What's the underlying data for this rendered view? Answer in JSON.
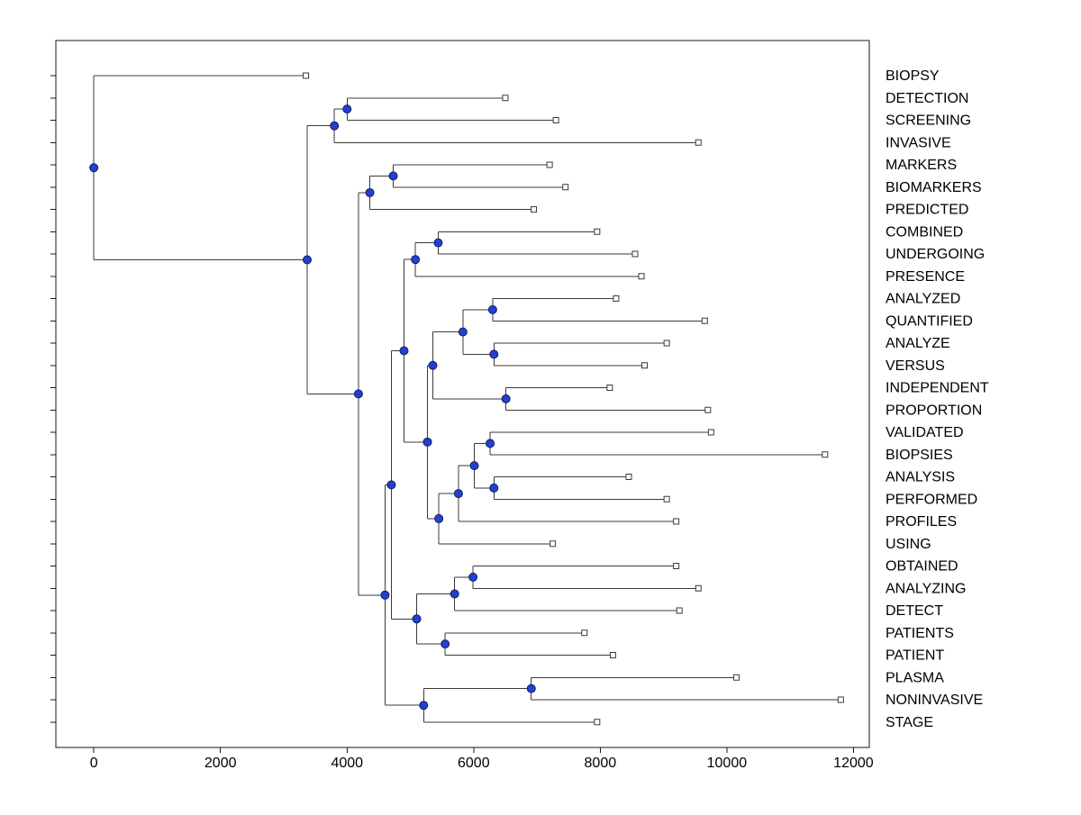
{
  "figure": {
    "background": "#ffffff"
  },
  "chart_data": {
    "type": "dendrogram",
    "title": "",
    "xlabel": "",
    "ylabel": "",
    "orientation": "horizontal-left-to-right",
    "grid": false,
    "xlim": [
      -600,
      12250
    ],
    "x_ticks": [
      0,
      2000,
      4000,
      6000,
      8000,
      10000,
      12000
    ],
    "x_tick_labels": [
      "0",
      "2000",
      "4000",
      "6000",
      "8000",
      "10000",
      "12000"
    ],
    "line_color": "#3a3a3a",
    "box_color": "#1a1a1a",
    "node_marker": {
      "shape": "filled-circle",
      "fill": "#2440cc",
      "stroke": "#101c66"
    },
    "leaf_marker": {
      "shape": "open-square",
      "fill": "#ffffff",
      "stroke": "#3a3a3a"
    },
    "leaves": [
      {
        "label": "BIOPSY",
        "x": 3350
      },
      {
        "label": "DETECTION",
        "x": 6500
      },
      {
        "label": "SCREENING",
        "x": 7300
      },
      {
        "label": "INVASIVE",
        "x": 9550
      },
      {
        "label": "MARKERS",
        "x": 7200
      },
      {
        "label": "BIOMARKERS",
        "x": 7450
      },
      {
        "label": "PREDICTED",
        "x": 6950
      },
      {
        "label": "COMBINED",
        "x": 7950
      },
      {
        "label": "UNDERGOING",
        "x": 8550
      },
      {
        "label": "PRESENCE",
        "x": 8650
      },
      {
        "label": "ANALYZED",
        "x": 8250
      },
      {
        "label": "QUANTIFIED",
        "x": 9650
      },
      {
        "label": "ANALYZE",
        "x": 9050
      },
      {
        "label": "VERSUS",
        "x": 8700
      },
      {
        "label": "INDEPENDENT",
        "x": 8150
      },
      {
        "label": "PROPORTION",
        "x": 9700
      },
      {
        "label": "VALIDATED",
        "x": 9750
      },
      {
        "label": "BIOPSIES",
        "x": 11550
      },
      {
        "label": "ANALYSIS",
        "x": 8450
      },
      {
        "label": "PERFORMED",
        "x": 9050
      },
      {
        "label": "PROFILES",
        "x": 9200
      },
      {
        "label": "USING",
        "x": 7250
      },
      {
        "label": "OBTAINED",
        "x": 9200
      },
      {
        "label": "ANALYZING",
        "x": 9550
      },
      {
        "label": "DETECT",
        "x": 9250
      },
      {
        "label": "PATIENTS",
        "x": 7750
      },
      {
        "label": "PATIENT",
        "x": 8200
      },
      {
        "label": "PLASMA",
        "x": 10150
      },
      {
        "label": "NONINVASIVE",
        "x": 11800
      },
      {
        "label": "STAGE",
        "x": 7950
      }
    ],
    "nodes": [
      {
        "id": "B1",
        "x": 4000,
        "children": [
          "DETECTION",
          "SCREENING"
        ]
      },
      {
        "id": "B2",
        "x": 3800,
        "children": [
          "B1",
          "INVASIVE"
        ]
      },
      {
        "id": "n3",
        "x": 4730,
        "children": [
          "MARKERS",
          "BIOMARKERS"
        ]
      },
      {
        "id": "n4",
        "x": 4360,
        "children": [
          "n3",
          "PREDICTED"
        ]
      },
      {
        "id": "c1",
        "x": 5440,
        "children": [
          "COMBINED",
          "UNDERGOING"
        ]
      },
      {
        "id": "c2",
        "x": 5080,
        "children": [
          "c1",
          "PRESENCE"
        ]
      },
      {
        "id": "d1",
        "x": 6300,
        "children": [
          "ANALYZED",
          "QUANTIFIED"
        ]
      },
      {
        "id": "d2",
        "x": 6320,
        "children": [
          "ANALYZE",
          "VERSUS"
        ]
      },
      {
        "id": "d3",
        "x": 5830,
        "children": [
          "d1",
          "d2"
        ]
      },
      {
        "id": "e1",
        "x": 6510,
        "children": [
          "INDEPENDENT",
          "PROPORTION"
        ]
      },
      {
        "id": "d4",
        "x": 5355,
        "children": [
          "d3",
          "e1"
        ]
      },
      {
        "id": "f1",
        "x": 6260,
        "children": [
          "VALIDATED",
          "BIOPSIES"
        ]
      },
      {
        "id": "f2",
        "x": 6320,
        "children": [
          "ANALYSIS",
          "PERFORMED"
        ]
      },
      {
        "id": "f3",
        "x": 6010,
        "children": [
          "f1",
          "f2"
        ]
      },
      {
        "id": "g1",
        "x": 5760,
        "children": [
          "f3",
          "PROFILES"
        ]
      },
      {
        "id": "g2",
        "x": 5450,
        "children": [
          "g1",
          "USING"
        ]
      },
      {
        "id": "M1",
        "x": 5270,
        "children": [
          "d4",
          "g2"
        ]
      },
      {
        "id": "M2",
        "x": 4900,
        "children": [
          "c2",
          "M1"
        ]
      },
      {
        "id": "h1",
        "x": 5990,
        "children": [
          "OBTAINED",
          "ANALYZING"
        ]
      },
      {
        "id": "hp1",
        "x": 5700,
        "children": [
          "h1",
          "DETECT"
        ]
      },
      {
        "id": "p1",
        "x": 5550,
        "children": [
          "PATIENTS",
          "PATIENT"
        ]
      },
      {
        "id": "hp2",
        "x": 5100,
        "children": [
          "hp1",
          "p1"
        ]
      },
      {
        "id": "Z",
        "x": 4700,
        "children": [
          "M2",
          "hp2"
        ]
      },
      {
        "id": "q1",
        "x": 6910,
        "children": [
          "PLASMA",
          "NONINVASIVE"
        ]
      },
      {
        "id": "q3",
        "x": 5210,
        "children": [
          "q1",
          "STAGE"
        ]
      },
      {
        "id": "W",
        "x": 4600,
        "children": [
          "Z",
          "q3"
        ]
      },
      {
        "id": "G",
        "x": 4180,
        "children": [
          "n4",
          "W"
        ]
      },
      {
        "id": "A",
        "x": 3370,
        "children": [
          "B2",
          "G"
        ]
      },
      {
        "id": "root",
        "x": 0,
        "children": [
          "BIOPSY",
          "A"
        ]
      }
    ],
    "root": "root",
    "legend": null
  }
}
